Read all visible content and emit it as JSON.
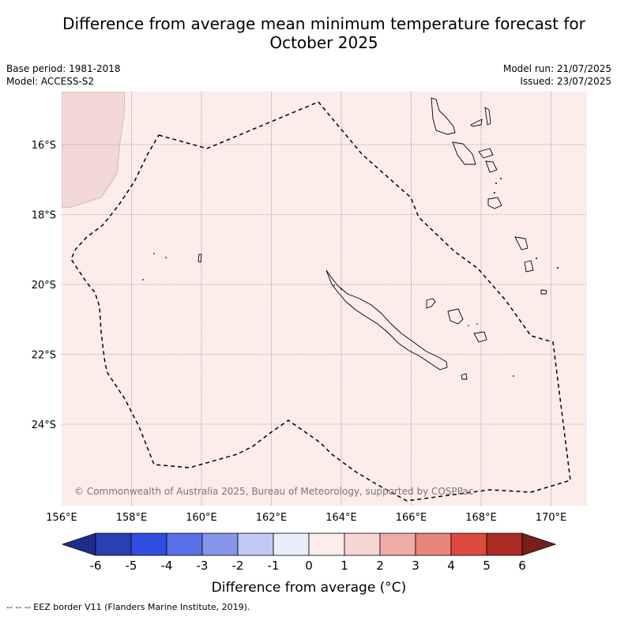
{
  "title_line1": "Difference from average mean minimum temperature forecast for",
  "title_line2": "October 2025",
  "base_period": "Base period: 1981-2018",
  "model": "Model: ACCESS-S2",
  "model_run": "Model run: 21/07/2025",
  "issued": "Issued: 23/07/2025",
  "copyright": "© Commonwealth of Australia 2025, Bureau of Meteorology, supported by COSPPac",
  "lon_ticks": [
    "156°E",
    "158°E",
    "160°E",
    "162°E",
    "164°E",
    "166°E",
    "168°E",
    "170°E"
  ],
  "lat_ticks": [
    "16°S",
    "18°S",
    "20°S",
    "22°S",
    "24°S"
  ],
  "colorbar": {
    "ticks": [
      "-6",
      "-5",
      "-4",
      "-3",
      "-2",
      "-1",
      "0",
      "1",
      "2",
      "3",
      "4",
      "5",
      "6"
    ],
    "colors": [
      "#1e2d8a",
      "#2c3fb0",
      "#2f4ee0",
      "#5a70e8",
      "#8796ea",
      "#c0c8f4",
      "#eaedfb",
      "#fdeceb",
      "#f5d6d3",
      "#efaba6",
      "#e7867c",
      "#dd4a3e",
      "#ac2a24",
      "#761f1b"
    ],
    "label": "Difference from average (°C)"
  },
  "map_colors": {
    "ocean": "#fcecea",
    "anomaly_patch": "#f3d7d5"
  },
  "footer": "-- -- -- EEZ border V11 (Flanders Marine Institute, 2019)."
}
